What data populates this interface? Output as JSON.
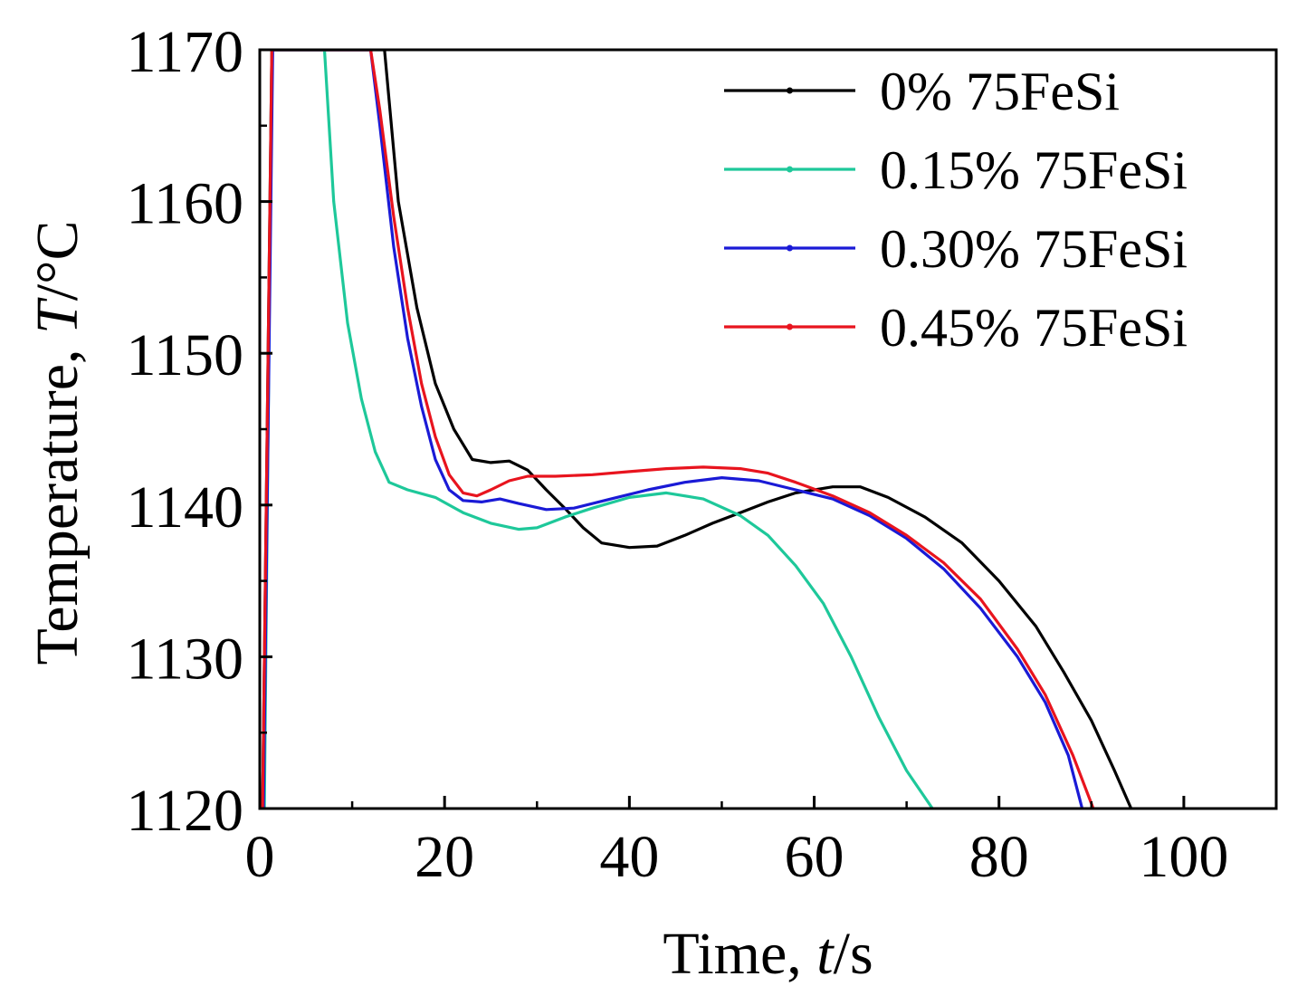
{
  "chart_data": {
    "type": "line",
    "title": "",
    "xlabel_prefix": "Time, ",
    "xlabel_var": "t",
    "xlabel_unit": "/s",
    "ylabel_prefix": "Temperature, ",
    "ylabel_var": "T",
    "ylabel_unit": "/°C",
    "xlim": [
      0,
      110
    ],
    "ylim": [
      1120,
      1170
    ],
    "xticks": [
      0,
      20,
      40,
      60,
      80,
      100
    ],
    "yticks": [
      1120,
      1130,
      1140,
      1150,
      1160,
      1170
    ],
    "grid": false,
    "legend_position": "top-right",
    "series": [
      {
        "name": "0% 75FeSi",
        "color": "#000000",
        "points": [
          [
            0.3,
            1120
          ],
          [
            0.8,
            1145
          ],
          [
            1.3,
            1170
          ],
          [
            13.5,
            1170
          ],
          [
            15,
            1160
          ],
          [
            17,
            1153
          ],
          [
            19,
            1148
          ],
          [
            21,
            1145
          ],
          [
            23,
            1143
          ],
          [
            25,
            1142.8
          ],
          [
            27,
            1142.9
          ],
          [
            29,
            1142.3
          ],
          [
            31,
            1141
          ],
          [
            33,
            1139.8
          ],
          [
            35,
            1138.5
          ],
          [
            37,
            1137.5
          ],
          [
            40,
            1137.2
          ],
          [
            43,
            1137.3
          ],
          [
            46,
            1138
          ],
          [
            49,
            1138.8
          ],
          [
            52,
            1139.5
          ],
          [
            55,
            1140.2
          ],
          [
            58,
            1140.8
          ],
          [
            62,
            1141.2
          ],
          [
            65,
            1141.2
          ],
          [
            68,
            1140.5
          ],
          [
            72,
            1139.2
          ],
          [
            76,
            1137.5
          ],
          [
            80,
            1135
          ],
          [
            84,
            1132
          ],
          [
            87,
            1129
          ],
          [
            90,
            1125.8
          ],
          [
            92.5,
            1122.5
          ],
          [
            94.3,
            1120
          ]
        ]
      },
      {
        "name": "0.15% 75FeSi",
        "color": "#1ec89a",
        "points": [
          [
            0.5,
            1120
          ],
          [
            0.9,
            1145
          ],
          [
            1.3,
            1170
          ],
          [
            7,
            1170
          ],
          [
            8,
            1160
          ],
          [
            9.5,
            1152
          ],
          [
            11,
            1147
          ],
          [
            12.5,
            1143.5
          ],
          [
            14,
            1141.5
          ],
          [
            16,
            1141
          ],
          [
            19,
            1140.5
          ],
          [
            22,
            1139.5
          ],
          [
            25,
            1138.8
          ],
          [
            28,
            1138.4
          ],
          [
            30,
            1138.5
          ],
          [
            33,
            1139.2
          ],
          [
            36,
            1139.8
          ],
          [
            40,
            1140.5
          ],
          [
            44,
            1140.8
          ],
          [
            48,
            1140.4
          ],
          [
            52,
            1139.3
          ],
          [
            55,
            1138
          ],
          [
            58,
            1136
          ],
          [
            61,
            1133.5
          ],
          [
            64,
            1130
          ],
          [
            67,
            1126
          ],
          [
            70,
            1122.5
          ],
          [
            72.8,
            1120
          ]
        ]
      },
      {
        "name": "0.30% 75FeSi",
        "color": "#1a1ad6",
        "points": [
          [
            0.4,
            1120
          ],
          [
            0.9,
            1145
          ],
          [
            1.4,
            1170
          ],
          [
            12,
            1170
          ],
          [
            13,
            1165
          ],
          [
            14.5,
            1157
          ],
          [
            16,
            1151
          ],
          [
            17.5,
            1146.5
          ],
          [
            19,
            1143
          ],
          [
            20.5,
            1141
          ],
          [
            22,
            1140.3
          ],
          [
            24,
            1140.2
          ],
          [
            26,
            1140.4
          ],
          [
            28,
            1140.1
          ],
          [
            31,
            1139.7
          ],
          [
            34,
            1139.8
          ],
          [
            38,
            1140.4
          ],
          [
            42,
            1141
          ],
          [
            46,
            1141.5
          ],
          [
            50,
            1141.8
          ],
          [
            54,
            1141.6
          ],
          [
            58,
            1141
          ],
          [
            62,
            1140.4
          ],
          [
            66,
            1139.3
          ],
          [
            70,
            1137.8
          ],
          [
            74,
            1135.8
          ],
          [
            78,
            1133.2
          ],
          [
            82,
            1130
          ],
          [
            85,
            1127
          ],
          [
            87.5,
            1123.5
          ],
          [
            89,
            1120
          ]
        ]
      },
      {
        "name": "0.45% 75FeSi",
        "color": "#e8141e",
        "points": [
          [
            0.3,
            1120
          ],
          [
            0.8,
            1145
          ],
          [
            1.3,
            1170
          ],
          [
            12,
            1170
          ],
          [
            13,
            1166
          ],
          [
            14.5,
            1159
          ],
          [
            16,
            1153
          ],
          [
            17.5,
            1148
          ],
          [
            19,
            1144.5
          ],
          [
            20.5,
            1142
          ],
          [
            22,
            1140.8
          ],
          [
            23.5,
            1140.6
          ],
          [
            25,
            1141
          ],
          [
            27,
            1141.6
          ],
          [
            29,
            1141.9
          ],
          [
            32,
            1141.9
          ],
          [
            36,
            1142
          ],
          [
            40,
            1142.2
          ],
          [
            44,
            1142.4
          ],
          [
            48,
            1142.5
          ],
          [
            52,
            1142.4
          ],
          [
            55,
            1142.1
          ],
          [
            58,
            1141.5
          ],
          [
            62,
            1140.6
          ],
          [
            66,
            1139.5
          ],
          [
            70,
            1138
          ],
          [
            74,
            1136.2
          ],
          [
            78,
            1133.8
          ],
          [
            82,
            1130.5
          ],
          [
            85,
            1127.5
          ],
          [
            88,
            1123.5
          ],
          [
            90.2,
            1120
          ]
        ]
      }
    ]
  }
}
